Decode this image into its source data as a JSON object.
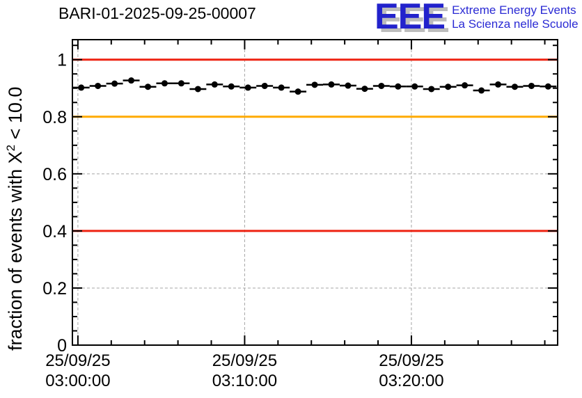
{
  "window": {
    "title": "BARI-01-2025-09-25-00007 monitoring plot"
  },
  "header": {
    "title": "BARI-01-2025-09-25-00007"
  },
  "logo": {
    "acronym": "EEE",
    "line1": "Extreme Energy Events",
    "line2": "La Scienza nelle Scuole",
    "color": "#2222cc",
    "shadow_color": "#bcbcbc"
  },
  "chart_data": {
    "type": "scatter",
    "title": "BARI-01-2025-09-25-00007",
    "ylabel_parts": {
      "pre": "fraction of events with X",
      "sup": "2",
      "post": " < 10.0"
    },
    "xlabel": "",
    "x_unit": "minutes since 25/09/25 03:00:00",
    "xlim": [
      -0.33,
      28.77
    ],
    "ylim": [
      0,
      1.07
    ],
    "grid": "dashed gray at major ticks, both axes",
    "legend": "none",
    "x": [
      0.2,
      1.2,
      2.2,
      3.2,
      4.2,
      5.2,
      6.2,
      7.2,
      8.2,
      9.2,
      10.2,
      11.2,
      12.2,
      13.2,
      14.2,
      15.2,
      16.2,
      17.2,
      18.2,
      19.2,
      20.2,
      21.2,
      22.2,
      23.2,
      24.2,
      25.2,
      26.2,
      27.2,
      28.2
    ],
    "y": [
      0.902,
      0.908,
      0.916,
      0.927,
      0.905,
      0.917,
      0.917,
      0.897,
      0.913,
      0.906,
      0.902,
      0.908,
      0.902,
      0.888,
      0.912,
      0.913,
      0.909,
      0.898,
      0.908,
      0.906,
      0.906,
      0.897,
      0.905,
      0.91,
      0.892,
      0.913,
      0.905,
      0.908,
      0.906
    ],
    "x_error_halfwidth": 0.5,
    "marker": {
      "shape": "filled-circle",
      "color": "#000000",
      "radius_px": 4.5
    },
    "x_major_ticks": [
      {
        "value": 0,
        "label_line1": "25/09/25",
        "label_line2": "03:00:00"
      },
      {
        "value": 10,
        "label_line1": "25/09/25",
        "label_line2": "03:10:00"
      },
      {
        "value": 20,
        "label_line1": "25/09/25",
        "label_line2": "03:20:00"
      }
    ],
    "x_minor_step": 2,
    "y_major_ticks": [
      {
        "value": 0,
        "label": "0"
      },
      {
        "value": 0.2,
        "label": "0.2"
      },
      {
        "value": 0.4,
        "label": "0.4"
      },
      {
        "value": 0.6,
        "label": "0.6"
      },
      {
        "value": 0.8,
        "label": "0.8"
      },
      {
        "value": 1,
        "label": "1"
      }
    ],
    "y_minor_step": 0.05,
    "reference_lines": [
      {
        "y": 1.0,
        "color": "#ee2211",
        "meaning": "upper red threshold"
      },
      {
        "y": 0.8,
        "color": "#ffaa00",
        "meaning": "orange warning threshold"
      },
      {
        "y": 0.4,
        "color": "#ee2211",
        "meaning": "lower red threshold"
      }
    ],
    "gridline_color": "#a5a5a5",
    "axis_color": "#000000"
  }
}
